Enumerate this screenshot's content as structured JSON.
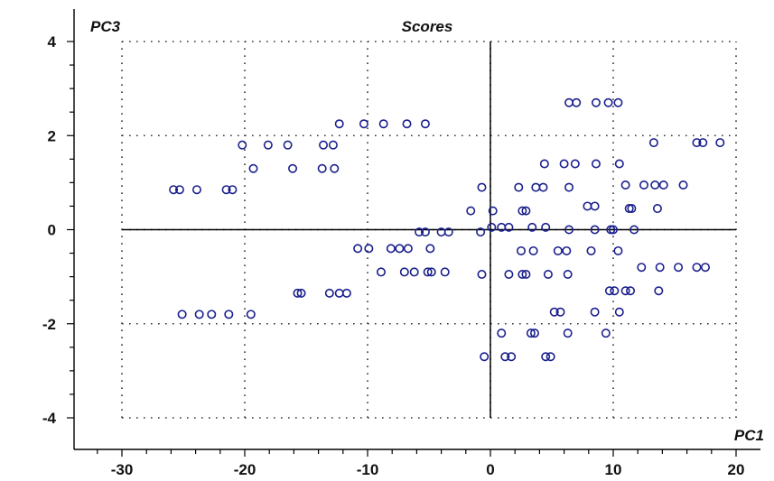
{
  "chart_data": {
    "type": "scatter",
    "title": "Scores",
    "xlabel": "PC1",
    "ylabel": "PC3",
    "xlim": [
      -30,
      20
    ],
    "ylim": [
      -4,
      4
    ],
    "x_ticks": [
      -30,
      -20,
      -10,
      0,
      10,
      20
    ],
    "y_ticks": [
      -4,
      -2,
      0,
      2,
      4
    ],
    "grid": "dotted",
    "legend": "none",
    "marker": "open-circle",
    "marker_color": "#1a1f8c",
    "reference_lines": [
      "x=0",
      "y=0"
    ],
    "points": [
      [
        -12.3,
        2.25
      ],
      [
        -10.3,
        2.25
      ],
      [
        -8.7,
        2.25
      ],
      [
        -6.8,
        2.25
      ],
      [
        -5.3,
        2.25
      ],
      [
        -20.2,
        1.8
      ],
      [
        -18.1,
        1.8
      ],
      [
        -16.5,
        1.8
      ],
      [
        -13.6,
        1.8
      ],
      [
        -12.8,
        1.8
      ],
      [
        -19.3,
        1.3
      ],
      [
        -16.1,
        1.3
      ],
      [
        -13.7,
        1.3
      ],
      [
        -12.7,
        1.3
      ],
      [
        -25.3,
        0.85
      ],
      [
        -25.8,
        0.85
      ],
      [
        -23.9,
        0.85
      ],
      [
        -21.0,
        0.85
      ],
      [
        -21.5,
        0.85
      ],
      [
        -10.8,
        -0.4
      ],
      [
        -9.9,
        -0.4
      ],
      [
        -8.1,
        -0.4
      ],
      [
        -7.4,
        -0.4
      ],
      [
        -6.7,
        -0.4
      ],
      [
        -4.9,
        -0.4
      ],
      [
        -5.8,
        -0.05
      ],
      [
        -5.3,
        -0.05
      ],
      [
        -4.0,
        -0.05
      ],
      [
        -3.4,
        -0.05
      ],
      [
        -8.9,
        -0.9
      ],
      [
        -7.0,
        -0.9
      ],
      [
        -6.2,
        -0.9
      ],
      [
        -5.1,
        -0.9
      ],
      [
        -4.8,
        -0.9
      ],
      [
        -3.7,
        -0.9
      ],
      [
        -15.4,
        -1.35
      ],
      [
        -15.7,
        -1.35
      ],
      [
        -13.1,
        -1.35
      ],
      [
        -12.3,
        -1.35
      ],
      [
        -11.7,
        -1.35
      ],
      [
        -25.1,
        -1.8
      ],
      [
        -23.7,
        -1.8
      ],
      [
        -22.7,
        -1.8
      ],
      [
        -21.3,
        -1.8
      ],
      [
        -19.5,
        -1.8
      ],
      [
        6.4,
        2.7
      ],
      [
        7.0,
        2.7
      ],
      [
        8.6,
        2.7
      ],
      [
        9.6,
        2.7
      ],
      [
        10.4,
        2.7
      ],
      [
        13.3,
        1.85
      ],
      [
        16.8,
        1.85
      ],
      [
        17.3,
        1.85
      ],
      [
        18.7,
        1.85
      ],
      [
        4.4,
        1.4
      ],
      [
        6.0,
        1.4
      ],
      [
        6.9,
        1.4
      ],
      [
        8.6,
        1.4
      ],
      [
        10.5,
        1.4
      ],
      [
        -0.7,
        0.9
      ],
      [
        2.3,
        0.9
      ],
      [
        3.7,
        0.9
      ],
      [
        4.3,
        0.9
      ],
      [
        6.4,
        0.9
      ],
      [
        11.0,
        0.95
      ],
      [
        12.5,
        0.95
      ],
      [
        13.4,
        0.95
      ],
      [
        14.1,
        0.95
      ],
      [
        15.7,
        0.95
      ],
      [
        -1.6,
        0.4
      ],
      [
        0.2,
        0.4
      ],
      [
        2.6,
        0.4
      ],
      [
        2.9,
        0.4
      ],
      [
        7.9,
        0.5
      ],
      [
        8.5,
        0.5
      ],
      [
        11.3,
        0.45
      ],
      [
        11.5,
        0.45
      ],
      [
        13.6,
        0.45
      ],
      [
        -0.8,
        -0.05
      ],
      [
        0.1,
        0.05
      ],
      [
        0.9,
        0.05
      ],
      [
        1.5,
        0.05
      ],
      [
        3.4,
        0.05
      ],
      [
        4.5,
        0.05
      ],
      [
        6.4,
        0.0
      ],
      [
        8.5,
        0.0
      ],
      [
        9.8,
        0.0
      ],
      [
        10.0,
        0.0
      ],
      [
        11.7,
        0.0
      ],
      [
        2.5,
        -0.45
      ],
      [
        3.5,
        -0.45
      ],
      [
        5.5,
        -0.45
      ],
      [
        6.2,
        -0.45
      ],
      [
        8.2,
        -0.45
      ],
      [
        10.4,
        -0.45
      ],
      [
        -0.7,
        -0.95
      ],
      [
        1.5,
        -0.95
      ],
      [
        2.6,
        -0.95
      ],
      [
        2.9,
        -0.95
      ],
      [
        4.7,
        -0.95
      ],
      [
        6.3,
        -0.95
      ],
      [
        12.3,
        -0.8
      ],
      [
        13.8,
        -0.8
      ],
      [
        15.3,
        -0.8
      ],
      [
        16.8,
        -0.8
      ],
      [
        17.5,
        -0.8
      ],
      [
        9.7,
        -1.3
      ],
      [
        10.1,
        -1.3
      ],
      [
        11.0,
        -1.3
      ],
      [
        11.4,
        -1.3
      ],
      [
        13.7,
        -1.3
      ],
      [
        5.2,
        -1.75
      ],
      [
        5.7,
        -1.75
      ],
      [
        8.5,
        -1.75
      ],
      [
        10.5,
        -1.75
      ],
      [
        0.9,
        -2.2
      ],
      [
        3.3,
        -2.2
      ],
      [
        3.6,
        -2.2
      ],
      [
        6.3,
        -2.2
      ],
      [
        9.4,
        -2.2
      ],
      [
        -0.5,
        -2.7
      ],
      [
        1.2,
        -2.7
      ],
      [
        1.7,
        -2.7
      ],
      [
        4.5,
        -2.7
      ],
      [
        4.9,
        -2.7
      ]
    ]
  }
}
